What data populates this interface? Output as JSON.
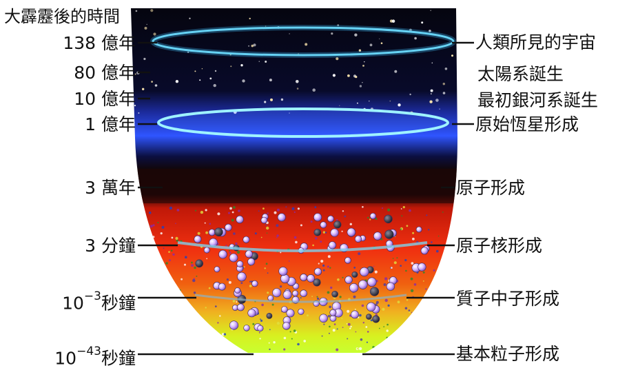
{
  "title": "大霹靂後的時間",
  "time_labels": [
    {
      "value": "138 億年"
    },
    {
      "value": "80 億年"
    },
    {
      "value": "10 億年"
    },
    {
      "value": "1 億年"
    },
    {
      "value": "3 萬年"
    },
    {
      "value": "3 分鐘"
    },
    {
      "base": "10",
      "exponent": "−3",
      "unit": "秒鐘"
    },
    {
      "base": "10",
      "exponent": "−43",
      "unit": "秒鐘"
    }
  ],
  "events": [
    "人類所見的宇宙",
    "太陽系誕生",
    "最初銀河系誕生",
    "原始恆星形成",
    "原子形成",
    "原子核形成",
    "質子中子形成",
    "基本粒子形成"
  ]
}
